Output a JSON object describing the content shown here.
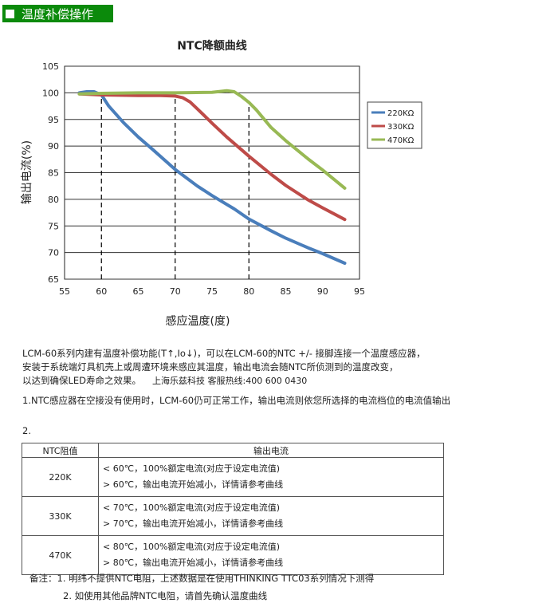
{
  "header": {
    "title": "温度补偿操作"
  },
  "chart_data": {
    "type": "line",
    "title": "NTC降额曲线",
    "xlabel": "感应温度(度)",
    "ylabel": "输出电流(%)",
    "xlim": [
      55,
      95
    ],
    "ylim": [
      65,
      105
    ],
    "xticks": [
      55,
      60,
      65,
      70,
      75,
      80,
      85,
      90,
      95
    ],
    "yticks": [
      65,
      70,
      75,
      80,
      85,
      90,
      95,
      100,
      105
    ],
    "grid": "horizontal",
    "legend": "right",
    "thresholds": [
      60,
      70,
      80
    ],
    "series": [
      {
        "name": "220KΩ",
        "color": "#4a7ebb",
        "points": [
          [
            57,
            100
          ],
          [
            58,
            100.2
          ],
          [
            59,
            100.2
          ],
          [
            60,
            99.6
          ],
          [
            61,
            97.5
          ],
          [
            63,
            94.4
          ],
          [
            65,
            91.7
          ],
          [
            67,
            89.3
          ],
          [
            70,
            85.6
          ],
          [
            73,
            82.5
          ],
          [
            75,
            80.7
          ],
          [
            78,
            78.2
          ],
          [
            80,
            76.3
          ],
          [
            83,
            74.1
          ],
          [
            85,
            72.7
          ],
          [
            88,
            70.9
          ],
          [
            90,
            69.8
          ],
          [
            93,
            68
          ]
        ]
      },
      {
        "name": "330KΩ",
        "color": "#be4b48",
        "points": [
          [
            57,
            99.8
          ],
          [
            60,
            99.6
          ],
          [
            65,
            99.5
          ],
          [
            68,
            99.5
          ],
          [
            70,
            99.4
          ],
          [
            71,
            99.1
          ],
          [
            72,
            98.3
          ],
          [
            73,
            97
          ],
          [
            75,
            94.3
          ],
          [
            77,
            91.7
          ],
          [
            80,
            88.1
          ],
          [
            83,
            84.7
          ],
          [
            85,
            82.6
          ],
          [
            88,
            79.9
          ],
          [
            90,
            78.4
          ],
          [
            93,
            76.2
          ]
        ]
      },
      {
        "name": "470KΩ",
        "color": "#98b954",
        "points": [
          [
            57,
            99.8
          ],
          [
            60,
            99.9
          ],
          [
            65,
            100
          ],
          [
            70,
            100
          ],
          [
            75,
            100.1
          ],
          [
            77,
            100.4
          ],
          [
            78,
            100.2
          ],
          [
            79,
            99.3
          ],
          [
            80,
            98.2
          ],
          [
            81,
            96.8
          ],
          [
            83,
            93.5
          ],
          [
            85,
            91
          ],
          [
            88,
            87.6
          ],
          [
            90,
            85.5
          ],
          [
            93,
            82.1
          ]
        ]
      }
    ]
  },
  "intro": {
    "line1": "LCM-60系列内建有温度补偿功能(T↑,Io↓)，可以在LCM-60的NTC +/- 接脚连接一个温度感应器，",
    "line2": "安装于系统端灯具机壳上或周遭环境来感应其温度，输出电流会随NTC所侦测到的温度改变，",
    "line3": "以达到确保LED寿命之效果。",
    "promo": "上海乐兹科技 客服热线:400 600 0430"
  },
  "note1": "1.NTC感应器在空接没有使用时，LCM-60仍可正常工作，输出电流则依您所选择的电流档位的电流值输出",
  "note2": "2.",
  "table": {
    "headers": [
      "NTC阻值",
      "输出电流"
    ],
    "rows": [
      {
        "value": "220K",
        "line1": "< 60℃，100%额定电流(对应于设定电流值)",
        "line2": "> 60℃，输出电流开始减小，详情请参考曲线"
      },
      {
        "value": "330K",
        "line1": "< 70℃，100%额定电流(对应于设定电流值)",
        "line2": "> 70℃，输出电流开始减小，详情请参考曲线"
      },
      {
        "value": "470K",
        "line1": "< 80℃，100%额定电流(对应于设定电流值)",
        "line2": "> 80℃，输出电流开始减小，详情请参考曲线"
      }
    ]
  },
  "remarks": {
    "line1": "备注：1. 明纬不提供NTC电阻，上述数据是在使用THINKING TTC03系列情况下测得",
    "line2": "2. 如使用其他品牌NTC电阻，请首先确认温度曲线"
  }
}
